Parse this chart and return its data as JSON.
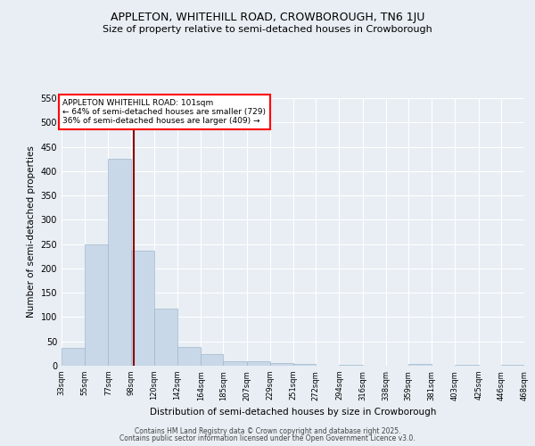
{
  "title": "APPLETON, WHITEHILL ROAD, CROWBOROUGH, TN6 1JU",
  "subtitle": "Size of property relative to semi-detached houses in Crowborough",
  "xlabel": "Distribution of semi-detached houses by size in Crowborough",
  "ylabel": "Number of semi-detached properties",
  "annotation_title": "APPLETON WHITEHILL ROAD: 101sqm",
  "annotation_line1": "← 64% of semi-detached houses are smaller (729)",
  "annotation_line2": "36% of semi-detached houses are larger (409) →",
  "marker_value": 101,
  "bin_edges": [
    33,
    55,
    77,
    98,
    120,
    142,
    164,
    185,
    207,
    229,
    251,
    272,
    294,
    316,
    338,
    359,
    381,
    403,
    425,
    446,
    468
  ],
  "counts": [
    37,
    250,
    425,
    237,
    118,
    39,
    23,
    9,
    9,
    6,
    4,
    0,
    1,
    0,
    0,
    3,
    0,
    2,
    0,
    2
  ],
  "bar_color": "#c8d8e8",
  "bar_edge_color": "#a0b8cc",
  "marker_color": "#8B0000",
  "background_color": "#e8eef4",
  "grid_color": "#ffffff",
  "footer1": "Contains HM Land Registry data © Crown copyright and database right 2025.",
  "footer2": "Contains public sector information licensed under the Open Government Licence v3.0.",
  "ylim": [
    0,
    550
  ],
  "yticks": [
    0,
    50,
    100,
    150,
    200,
    250,
    300,
    350,
    400,
    450,
    500,
    550
  ]
}
